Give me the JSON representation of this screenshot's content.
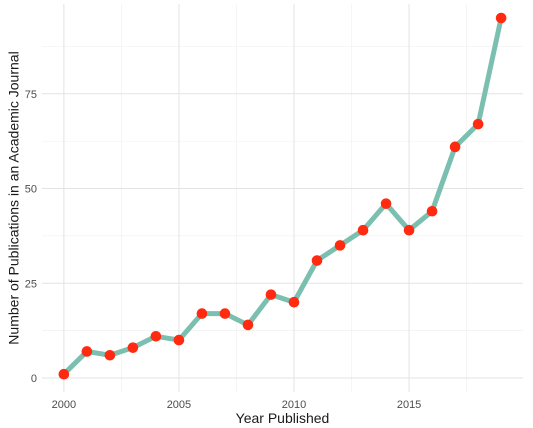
{
  "chart_data": {
    "type": "line",
    "title": "",
    "xlabel": "Year Published",
    "ylabel": "Number of Publications in an Academic Journal",
    "x": [
      2000,
      2001,
      2002,
      2003,
      2004,
      2005,
      2006,
      2007,
      2008,
      2009,
      2010,
      2011,
      2012,
      2013,
      2014,
      2015,
      2016,
      2017,
      2018,
      2019
    ],
    "series": [
      {
        "values": [
          1,
          7,
          6,
          8,
          11,
          10,
          17,
          17,
          14,
          22,
          20,
          31,
          35,
          39,
          46,
          39,
          44,
          61,
          67,
          95
        ]
      }
    ],
    "xticks": [
      "2000",
      "2005",
      "2010",
      "2015"
    ],
    "yticks": [
      "0",
      "25",
      "50",
      "75"
    ],
    "xlim": [
      1999.05,
      2019.95
    ],
    "ylim": [
      -3.7,
      98.7
    ],
    "grid": true,
    "legend": "none",
    "colors": {
      "line": "#7bbfb1",
      "point": "#ff2a0f",
      "grid_major": "#e3e3e3",
      "grid_minor": "#f1f1f1"
    }
  }
}
